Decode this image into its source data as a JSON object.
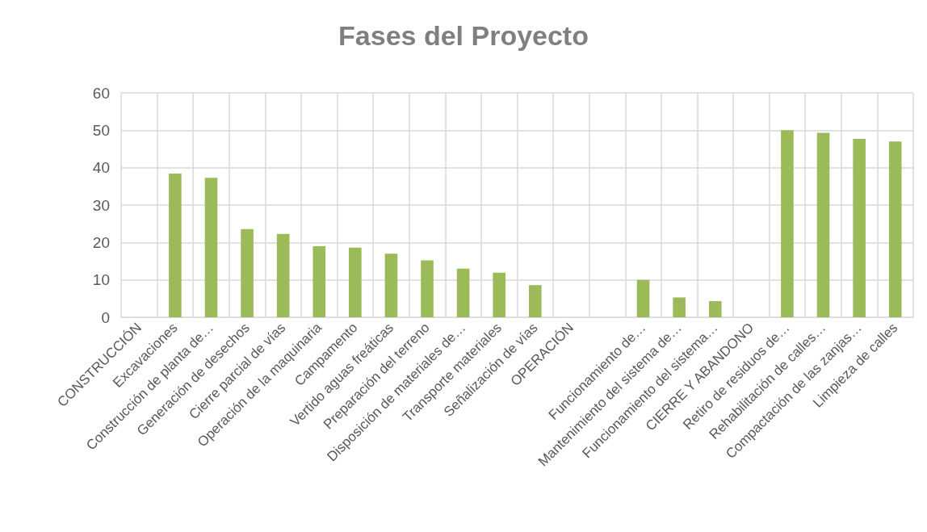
{
  "chart_data": {
    "type": "bar",
    "title": "Fases del Proyecto",
    "categories": [
      "CONSTRUCCIÓN",
      "Excavaciones",
      "Construcción de planta de…",
      "Generación de desechos",
      "Cierre parcial de vías",
      "Operación de la maquinaria",
      "Campamento",
      "Vertido aguas freáticas",
      "Preparación del terreno",
      "Disposición de materiales de…",
      "Transporte materiales",
      "Señalización de vías",
      "OPERACIÓN",
      null,
      "Funcionamiento de…",
      "Mantenimiento del sistema de…",
      "Funcionamiento del sistema…",
      "CIERRE Y ABANDONO",
      "Retiro de residuos de…",
      "Rehabilitación de calles…",
      "Compactación de las zanjas…",
      "Limpieza de calles"
    ],
    "values": [
      null,
      38.4,
      37.3,
      23.6,
      22.3,
      19.0,
      18.6,
      17.0,
      15.2,
      13.0,
      11.9,
      8.6,
      null,
      null,
      10.0,
      5.3,
      4.3,
      null,
      50.0,
      49.3,
      47.7,
      47.0
    ],
    "color": "#9bbb59",
    "ylim": [
      0,
      60
    ],
    "yticks": [
      0,
      10,
      20,
      30,
      40,
      50,
      60
    ],
    "grid": true
  }
}
